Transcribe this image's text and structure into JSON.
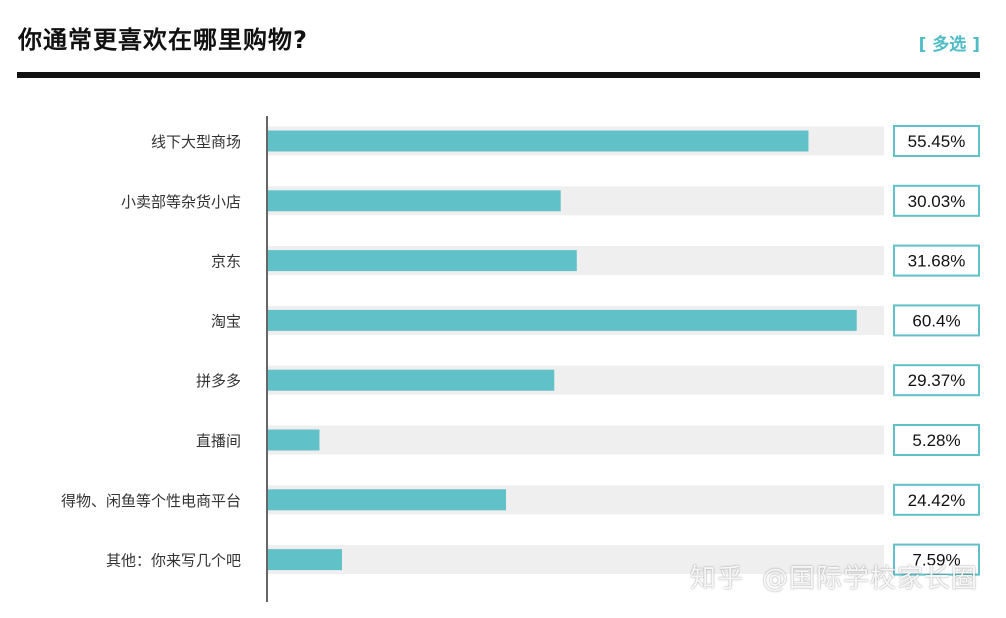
{
  "header": {
    "title": "你通常更喜欢在哪里购物?",
    "tag": "[ 多选 ]"
  },
  "watermark": {
    "brand": "知乎",
    "account": "@国际学校家长圈"
  },
  "colors": {
    "bar": "#60c1c9",
    "track": "#efefef",
    "label_box_border": "#60c1c9",
    "axis": "#333333",
    "rule": "#111111"
  },
  "chart_data": {
    "type": "bar",
    "orientation": "horizontal",
    "title": "你通常更喜欢在哪里购物?",
    "categories": [
      "线下大型商场",
      "小卖部等杂货小店",
      "京东",
      "淘宝",
      "拼多多",
      "直播间",
      "得物、闲鱼等个性电商平台",
      "其他：你来写几个吧"
    ],
    "values": [
      55.45,
      30.03,
      31.68,
      60.4,
      29.37,
      5.28,
      24.42,
      7.59
    ],
    "value_labels": [
      "55.45%",
      "30.03%",
      "31.68%",
      "60.4%",
      "29.37%",
      "5.28%",
      "24.42%",
      "7.59%"
    ],
    "unit": "%",
    "xlim": [
      0,
      63.2
    ],
    "grid": false,
    "legend": "none"
  }
}
